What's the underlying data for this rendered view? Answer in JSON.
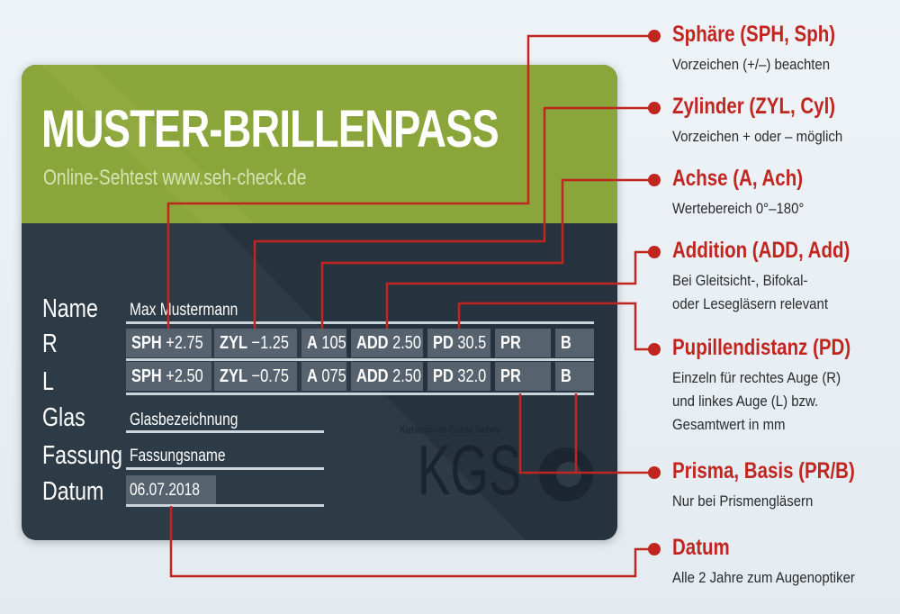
{
  "card": {
    "title": "MUSTER-BRILLENPASS",
    "subtitle": "Online-Sehtest www.seh-check.de",
    "labels": {
      "name": "Name",
      "r": "R",
      "l": "L",
      "glas": "Glas",
      "fassung": "Fassung",
      "datum": "Datum"
    },
    "values": {
      "name": "Max Mustermann",
      "glas": "Glasbezeichnung",
      "fassung": "Fassungsname",
      "datum": "06.07.2018"
    },
    "rows": {
      "R": [
        {
          "key": "SPH",
          "value": "+2.75"
        },
        {
          "key": "ZYL",
          "value": "−1.25"
        },
        {
          "key": "A",
          "value": "105"
        },
        {
          "key": "ADD",
          "value": "2.50"
        },
        {
          "key": "PD",
          "value": "30.5"
        },
        {
          "key": "PR",
          "value": ""
        },
        {
          "key": "B",
          "value": ""
        }
      ],
      "L": [
        {
          "key": "SPH",
          "value": "+2.50"
        },
        {
          "key": "ZYL",
          "value": "−0.75"
        },
        {
          "key": "A",
          "value": "075"
        },
        {
          "key": "ADD",
          "value": "2.50"
        },
        {
          "key": "PD",
          "value": "32.0"
        },
        {
          "key": "PR",
          "value": ""
        },
        {
          "key": "B",
          "value": ""
        }
      ]
    },
    "logo": {
      "caption": "Kuratorium Gutes Sehen",
      "letters": "KGS"
    }
  },
  "annotations": [
    {
      "title": "Sphäre (SPH, Sph)",
      "desc": [
        "Vorzeichen (+/–) beachten"
      ]
    },
    {
      "title": "Zylinder (ZYL, Cyl)",
      "desc": [
        "Vorzeichen + oder – möglich"
      ]
    },
    {
      "title": "Achse (A, Ach)",
      "desc": [
        "Wertebereich 0°–180°"
      ]
    },
    {
      "title": "Addition (ADD, Add)",
      "desc": [
        "Bei Gleitsicht-, Bifokal-",
        "oder Lesegläsern relevant"
      ]
    },
    {
      "title": "Pupillendistanz (PD)",
      "desc": [
        "Einzeln für rechtes Auge (R)",
        "und linkes Auge (L) bzw.",
        "Gesamtwert in mm"
      ]
    },
    {
      "title": "Prisma, Basis (PR/B)",
      "desc": [
        "Nur bei Prismengläsern"
      ]
    },
    {
      "title": "Datum",
      "desc": [
        "Alle 2 Jahre zum Augenoptiker"
      ]
    }
  ],
  "colors": {
    "green": "#8aa63a",
    "card_dark": "#2d3b47",
    "cell": "#56636e",
    "accent_red": "#c0261f"
  }
}
